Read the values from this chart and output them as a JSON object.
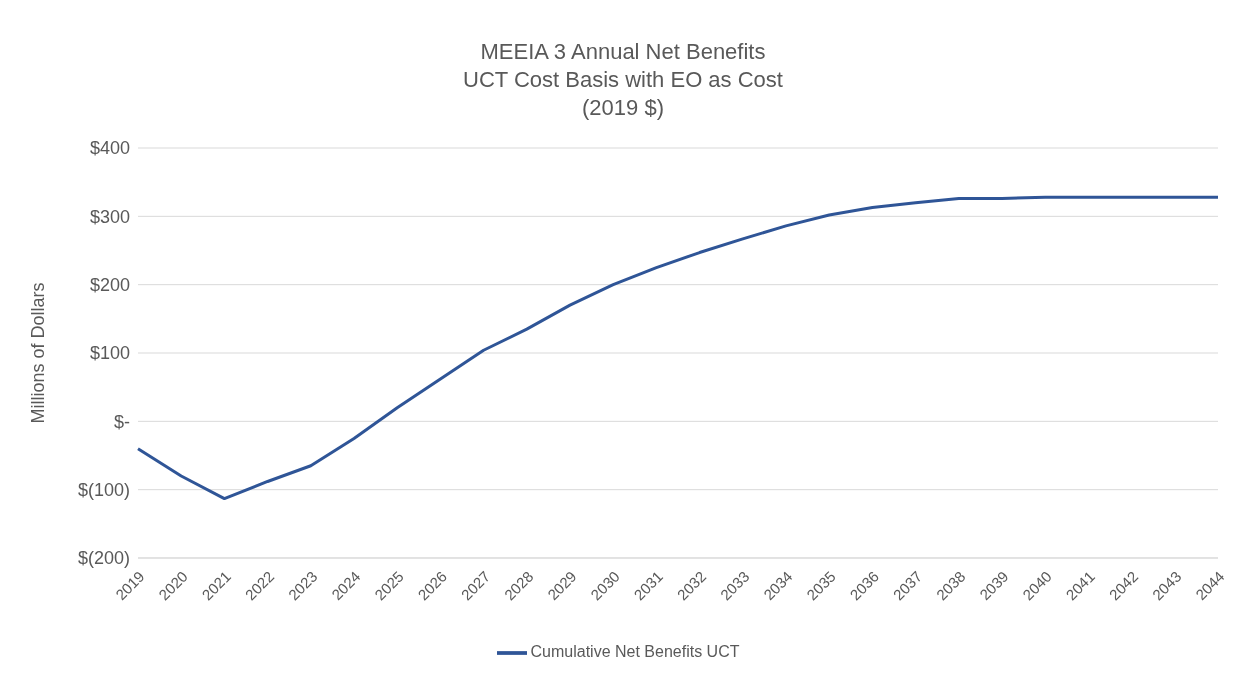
{
  "chart_data": {
    "type": "line",
    "title": "MEEIA 3 Annual Net Benefits",
    "subtitle": "UCT Cost Basis with EO as Cost\n(2019 $)",
    "ylabel": "Millions of Dollars",
    "categories": [
      "2019",
      "2020",
      "2021",
      "2022",
      "2023",
      "2024",
      "2025",
      "2026",
      "2027",
      "2028",
      "2029",
      "2030",
      "2031",
      "2032",
      "2033",
      "2034",
      "2035",
      "2036",
      "2037",
      "2038",
      "2039",
      "2040",
      "2041",
      "2042",
      "2043",
      "2044"
    ],
    "series": [
      {
        "name": "Cumulative Net Benefits UCT",
        "color": "#2f5597",
        "values": [
          -40,
          -80,
          -113,
          -88,
          -65,
          -25,
          20,
          62,
          104,
          135,
          170,
          200,
          225,
          247,
          267,
          286,
          302,
          313,
          320,
          326,
          326,
          328,
          328,
          328,
          328,
          328
        ]
      }
    ],
    "ylim": [
      -200,
      400
    ],
    "yticks": [
      {
        "value": -200,
        "label": "$(200)"
      },
      {
        "value": -100,
        "label": "$(100)"
      },
      {
        "value": 0,
        "label": "$-"
      },
      {
        "value": 100,
        "label": "$100"
      },
      {
        "value": 200,
        "label": "$200"
      },
      {
        "value": 300,
        "label": "$300"
      },
      {
        "value": 400,
        "label": "$400"
      }
    ],
    "grid": "y",
    "legend": "bottom",
    "marker": "none",
    "line_style": "solid"
  }
}
